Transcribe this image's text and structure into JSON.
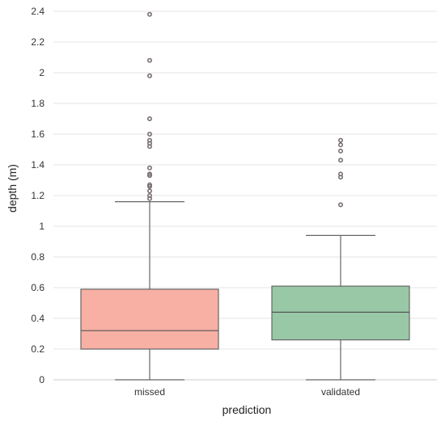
{
  "chart_data": {
    "type": "box",
    "xlabel": "prediction",
    "ylabel": "depth (m)",
    "ylim": [
      0,
      2.4
    ],
    "yticks": [
      0,
      0.2,
      0.4,
      0.6,
      0.8,
      1,
      1.2,
      1.4,
      1.6,
      1.8,
      2,
      2.2,
      2.4
    ],
    "ytick_labels": [
      "0",
      "0.2",
      "0.4",
      "0.6",
      "0.8",
      "1",
      "1.2",
      "1.4",
      "1.6",
      "1.8",
      "2",
      "2.2",
      "2.4"
    ],
    "grid": true,
    "categories": [
      "missed",
      "validated"
    ],
    "colors": [
      "#f8b0a4",
      "#98c8a6"
    ],
    "boxes": [
      {
        "category": "missed",
        "whisker_low": 0,
        "q1": 0.2,
        "median": 0.32,
        "q3": 0.59,
        "whisker_high": 1.16,
        "outliers": [
          1.18,
          1.2,
          1.23,
          1.26,
          1.27,
          1.33,
          1.34,
          1.38,
          1.52,
          1.54,
          1.56,
          1.6,
          1.7,
          1.98,
          2.08,
          2.38
        ]
      },
      {
        "category": "validated",
        "whisker_low": 0,
        "q1": 0.26,
        "median": 0.44,
        "q3": 0.61,
        "whisker_high": 0.94,
        "outliers": [
          1.14,
          1.32,
          1.34,
          1.43,
          1.49,
          1.53,
          1.56
        ]
      }
    ]
  }
}
